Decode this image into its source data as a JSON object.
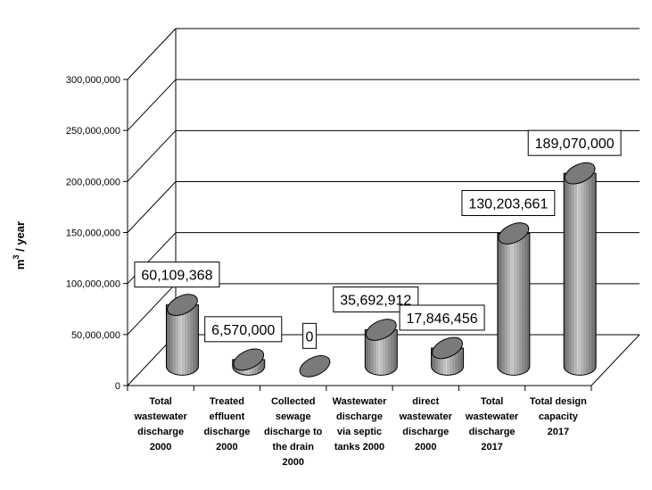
{
  "chart_data": {
    "type": "bar",
    "style": "3d-cylinder",
    "categories": [
      [
        "Total",
        "wastewater",
        "discharge",
        "2000"
      ],
      [
        "Treated",
        "effluent",
        "discharge",
        "2000"
      ],
      [
        "Collected",
        "sewage",
        "discharge to",
        "the drain",
        "2000"
      ],
      [
        "Wastewater",
        "discharge",
        "via septic",
        "tanks 2000"
      ],
      [
        "direct",
        "wastewater",
        "discharge",
        "2000"
      ],
      [
        "Total",
        "wastewater",
        "discharge",
        "2017"
      ],
      [
        "Total design",
        "capacity",
        "2017"
      ]
    ],
    "values": [
      60109368,
      6570000,
      0,
      35692912,
      17846456,
      130203661,
      189070000
    ],
    "data_labels": [
      "60,109,368",
      "6,570,000",
      "0",
      "35,692,912",
      "17,846,456",
      "130,203,661",
      "189,070,000"
    ],
    "ylabel": "m",
    "ylabel_superscript": "3",
    "ylabel_suffix": " / year",
    "ylim": [
      0,
      300000000
    ],
    "yticks": [
      0,
      50000000,
      100000000,
      150000000,
      200000000,
      250000000,
      300000000
    ],
    "ytick_labels": [
      "0",
      "50,000,000",
      "100,000,000",
      "150,000,000",
      "200,000,000",
      "250,000,000",
      "300,000,000"
    ],
    "grid": true,
    "legend": "none",
    "colors": {
      "cylinder_dark": "#6e6e6e",
      "cylinder_light": "#d6d6d6",
      "cylinder_top": "#7a7a7a",
      "grid": "#000000",
      "label_box": "#ffffff"
    }
  }
}
